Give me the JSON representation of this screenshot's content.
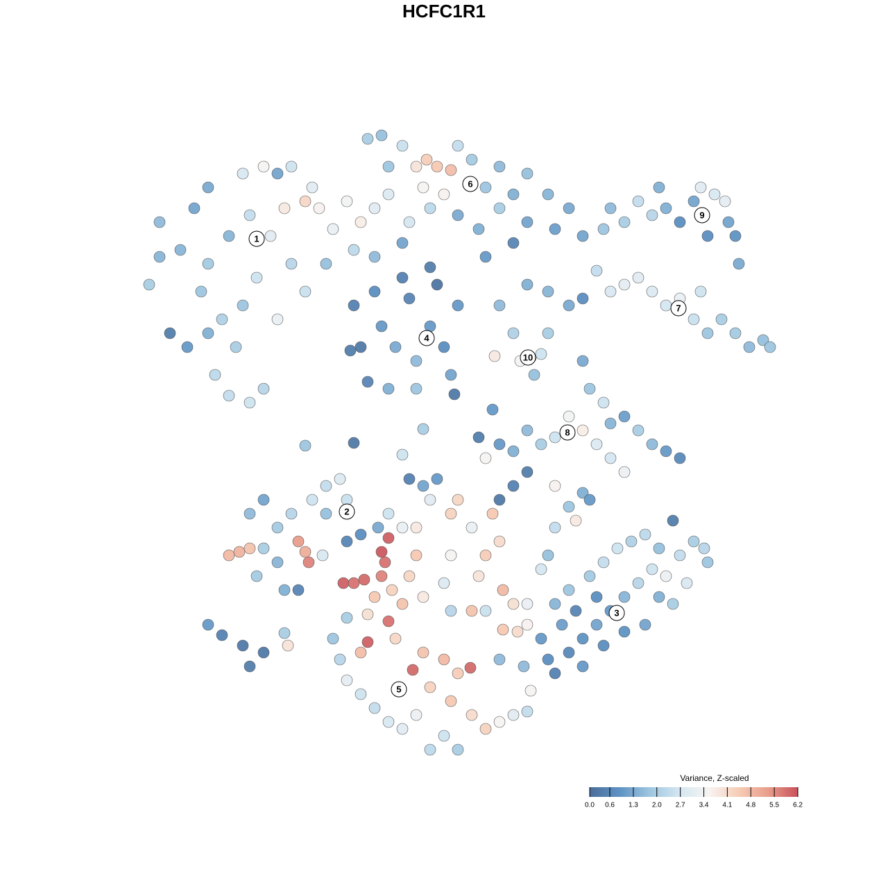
{
  "chart_data": {
    "type": "scatter",
    "title": "HCFC1R1",
    "xlim": [
      200,
      1130
    ],
    "ylim": [
      1095,
      185
    ],
    "x": [
      230,
      215,
      245,
      260,
      280,
      290,
      300,
      310,
      330,
      360,
      380,
      340,
      350,
      370,
      390,
      410,
      440,
      460,
      480,
      500,
      520,
      540,
      400,
      420,
      330,
      350,
      380,
      420,
      450,
      300,
      270,
      400,
      360,
      440,
      320,
      470,
      510,
      540,
      300,
      230,
      560,
      580,
      600,
      615,
      630,
      650,
      640,
      660,
      680,
      700,
      720,
      740,
      760,
      790,
      820,
      800,
      760,
      720,
      690,
      660,
      620,
      590,
      560,
      610,
      700,
      740,
      580,
      530,
      550,
      840,
      510,
      520,
      530,
      550,
      570,
      590,
      600,
      620,
      640,
      650,
      560,
      600,
      580,
      630,
      620,
      540,
      660,
      505,
      880,
      900,
      920,
      940,
      960,
      980,
      1000,
      1010,
      1030,
      1045,
      1050,
      1060,
      1020,
      870,
      950,
      1065,
      860,
      880,
      900,
      920,
      940,
      960,
      980,
      1000,
      1020,
      1040,
      1060,
      1080,
      1100,
      1110,
      1010,
      840,
      820,
      790,
      760,
      720,
      740,
      750,
      765,
      780,
      770,
      790,
      713,
      840,
      850,
      870,
      880,
      900,
      920,
      940,
      960,
      980,
      900,
      880,
      860,
      840,
      820,
      800,
      780,
      760,
      740,
      720,
      700,
      690,
      710,
      760,
      740,
      720,
      510,
      580,
      440,
      610,
      655,
      300,
      320,
      350,
      360,
      380,
      410,
      415,
      330,
      345,
      360,
      380,
      400,
      430,
      445,
      440,
      360,
      380,
      400,
      420,
      450,
      470,
      490,
      500,
      470,
      430,
      410,
      370,
      500,
      520,
      465,
      495,
      510,
      525,
      550,
      560,
      555,
      550,
      540,
      565,
      580,
      560,
      530,
      520,
      600,
      590,
      610,
      570,
      595,
      610,
      640,
      660,
      678,
      620,
      650,
      680,
      700,
      720,
      740,
      760,
      600,
      580,
      560,
      540,
      520,
      500,
      490,
      480,
      500,
      530,
      640,
      620,
      660,
      600,
      620,
      650,
      680,
      700,
      720,
      710,
      650,
      690,
      725,
      740,
      760,
      700,
      650,
      680,
      640,
      610,
      590,
      630,
      560,
      580,
      545,
      660,
      765,
      725,
      746,
      720,
      780,
      790,
      800,
      820,
      840,
      860,
      880,
      900,
      920,
      940,
      960,
      980,
      1000,
      1020,
      990,
      970,
      950,
      930,
      900,
      870,
      840,
      810,
      800,
      820,
      850,
      870,
      890,
      910,
      930,
      950,
      970,
      1015,
      830,
      860,
      780,
      760,
      755,
      790,
      800,
      820,
      830,
      800,
      840,
      850
    ],
    "y": [
      320,
      410,
      480,
      360,
      300,
      420,
      480,
      540,
      570,
      580,
      560,
      500,
      440,
      400,
      340,
      300,
      290,
      300,
      330,
      290,
      320,
      300,
      460,
      380,
      340,
      250,
      240,
      240,
      270,
      380,
      500,
      250,
      310,
      420,
      460,
      380,
      360,
      370,
      270,
      370,
      240,
      210,
      240,
      230,
      240,
      245,
      280,
      210,
      230,
      270,
      240,
      280,
      250,
      280,
      300,
      330,
      320,
      300,
      330,
      310,
      300,
      320,
      280,
      270,
      370,
      350,
      350,
      200,
      195,
      340,
      440,
      500,
      550,
      470,
      500,
      430,
      520,
      470,
      500,
      540,
      560,
      560,
      400,
      410,
      385,
      420,
      440,
      505,
      300,
      320,
      290,
      310,
      300,
      320,
      290,
      270,
      280,
      290,
      320,
      340,
      340,
      330,
      270,
      380,
      390,
      420,
      410,
      400,
      420,
      440,
      430,
      460,
      480,
      460,
      480,
      500,
      490,
      500,
      420,
      430,
      440,
      420,
      410,
      440,
      480,
      520,
      515,
      510,
      540,
      480,
      513,
      520,
      560,
      580,
      610,
      600,
      620,
      640,
      650,
      660,
      680,
      660,
      640,
      620,
      600,
      630,
      640,
      620,
      650,
      640,
      660,
      630,
      590,
      680,
      700,
      720,
      638,
      655,
      642,
      618,
      568,
      900,
      915,
      930,
      960,
      940,
      912,
      930,
      800,
      795,
      790,
      790,
      810,
      780,
      810,
      795,
      740,
      720,
      760,
      740,
      720,
      700,
      690,
      720,
      740,
      850,
      850,
      830,
      780,
      770,
      800,
      840,
      840,
      835,
      830,
      775,
      810,
      795,
      860,
      850,
      870,
      895,
      925,
      940,
      800,
      830,
      860,
      920,
      965,
      940,
      950,
      970,
      962,
      990,
      1010,
      1030,
      1050,
      1040,
      1030,
      1025,
      1030,
      1050,
      1040,
      1020,
      1000,
      980,
      950,
      920,
      890,
      885,
      1060,
      1080,
      1080,
      760,
      720,
      740,
      760,
      800,
      780,
      740,
      800,
      830,
      850,
      870,
      900,
      880,
      880,
      880,
      840,
      700,
      690,
      690,
      740,
      760,
      760,
      720,
      995,
      907,
      910,
      950,
      920,
      950,
      970,
      940,
      920,
      900,
      880,
      860,
      840,
      820,
      830,
      800,
      780,
      810,
      840,
      870,
      860,
      900,
      910,
      930,
      960,
      900,
      870,
      850,
      830,
      810,
      790,
      780,
      770,
      790,
      750,
      790,
      880,
      860,
      820,
      870,
      960,
      800,
      760,
      730,
      750,
      700,
      710,
      720
    ],
    "values": [
      1.6,
      2.0,
      0.4,
      1.5,
      1.2,
      1.8,
      1.4,
      2.3,
      2.4,
      2.6,
      2.2,
      2.0,
      1.8,
      2.6,
      3.0,
      3.8,
      4.2,
      3.6,
      3.2,
      3.4,
      3.7,
      3.0,
      3.2,
      2.2,
      1.5,
      2.8,
      3.5,
      2.6,
      3.0,
      1.9,
      1.0,
      1.2,
      2.4,
      2.5,
      2.1,
      1.7,
      2.3,
      1.6,
      1.3,
      1.5,
      1.8,
      2.5,
      3.9,
      4.4,
      4.5,
      4.7,
      3.6,
      2.4,
      1.9,
      1.8,
      1.6,
      1.4,
      1.7,
      1.5,
      1.3,
      1.1,
      1.2,
      2.0,
      1.4,
      1.3,
      2.3,
      2.7,
      2.9,
      3.5,
      1.0,
      0.6,
      1.2,
      2.0,
      1.7,
      1.2,
      0.5,
      0.3,
      0.6,
      1.0,
      1.3,
      0.6,
      1.6,
      1.0,
      0.8,
      1.2,
      1.4,
      1.8,
      0.5,
      0.2,
      0.4,
      0.8,
      1.0,
      0.4,
      1.6,
      2.0,
      2.4,
      2.2,
      1.4,
      0.8,
      1.2,
      3.0,
      2.8,
      3.1,
      1.2,
      0.9,
      0.8,
      1.8,
      1.4,
      1.3,
      2.4,
      2.8,
      3.1,
      3.0,
      2.9,
      2.7,
      3.2,
      2.5,
      1.8,
      2.0,
      1.9,
      1.6,
      1.7,
      1.8,
      2.6,
      0.8,
      1.3,
      1.5,
      1.4,
      1.6,
      2.1,
      3.5,
      3.8,
      2.6,
      1.7,
      2.0,
      3.8,
      1.3,
      1.8,
      2.6,
      1.5,
      1.1,
      2.0,
      1.6,
      1.0,
      0.7,
      3.3,
      2.7,
      2.9,
      3.7,
      3.4,
      2.6,
      2.0,
      1.6,
      1.4,
      1.0,
      3.5,
      0.4,
      1.0,
      0.4,
      0.5,
      0.3,
      0.3,
      2.6,
      1.8,
      2.0,
      0.3,
      1.0,
      0.5,
      0.3,
      0.4,
      0.3,
      2.0,
      3.9,
      4.8,
      4.9,
      4.6,
      2.0,
      1.5,
      5.3,
      5.6,
      5.0,
      1.6,
      1.2,
      1.9,
      2.2,
      2.6,
      2.4,
      2.9,
      2.5,
      1.7,
      0.6,
      1.4,
      1.9,
      0.6,
      0.8,
      2.8,
      6.0,
      5.8,
      5.9,
      5.6,
      6.0,
      5.8,
      6.1,
      4.5,
      4.3,
      4.6,
      5.8,
      6.0,
      4.7,
      4.5,
      4.2,
      3.8,
      4.2,
      5.9,
      4.6,
      4.8,
      4.4,
      5.9,
      4.3,
      4.5,
      4.1,
      4.3,
      3.5,
      3.0,
      2.4,
      3.3,
      3.0,
      2.8,
      2.4,
      2.6,
      3.1,
      2.2,
      1.8,
      2.0,
      4.0,
      2.6,
      2.3,
      2.0,
      3.8,
      3.0,
      4.3,
      3.2,
      4.4,
      4.1,
      4.5,
      3.5,
      3.9,
      4.8,
      4.0,
      3.6,
      2.5,
      2.2,
      4.6,
      2.9,
      1.2,
      0.5,
      1.0,
      2.6,
      3.2,
      1.3,
      4.2,
      3.5,
      4.5,
      4.1,
      1.6,
      1.0,
      0.8,
      0.5,
      0.7,
      0.9,
      1.2,
      1.0,
      1.5,
      2.2,
      2.6,
      3.3,
      2.4,
      2.0,
      1.8,
      2.8,
      2.0,
      1.4,
      1.2,
      0.9,
      0.8,
      1.0,
      1.1,
      1.5,
      1.8,
      1.9,
      2.4,
      2.6,
      2.1,
      2.3,
      1.7,
      0.4,
      2.2,
      0.6,
      0.8,
      2.7,
      3.2,
      1.6,
      1.7,
      2.4,
      1.8,
      3.8,
      3.6,
      1.4,
      1.0
    ],
    "clusters": [
      {
        "label": "1",
        "x": 370,
        "y": 344
      },
      {
        "label": "2",
        "x": 500,
        "y": 737
      },
      {
        "label": "3",
        "x": 889,
        "y": 883
      },
      {
        "label": "4",
        "x": 615,
        "y": 487
      },
      {
        "label": "5",
        "x": 575,
        "y": 993
      },
      {
        "label": "6",
        "x": 678,
        "y": 265
      },
      {
        "label": "7",
        "x": 978,
        "y": 444
      },
      {
        "label": "8",
        "x": 818,
        "y": 623
      },
      {
        "label": "9",
        "x": 1012,
        "y": 310
      },
      {
        "label": "10",
        "x": 761,
        "y": 515
      }
    ],
    "colorbar": {
      "title": "Variance, Z-scaled",
      "clim": [
        0,
        6.2
      ],
      "colors": [
        "#4a6d99",
        "#5e92c4",
        "#9cc5df",
        "#d3e6f1",
        "#f7f4f2",
        "#f6cdb6",
        "#e99d8b",
        "#c8515c"
      ],
      "ticks": [
        {
          "value": 0,
          "label": "0.0"
        },
        0.6,
        1.3,
        {
          "value": 2,
          "label": "2.0"
        },
        2.7,
        3.4,
        4.1,
        4.8,
        5.5,
        6.2
      ]
    }
  }
}
